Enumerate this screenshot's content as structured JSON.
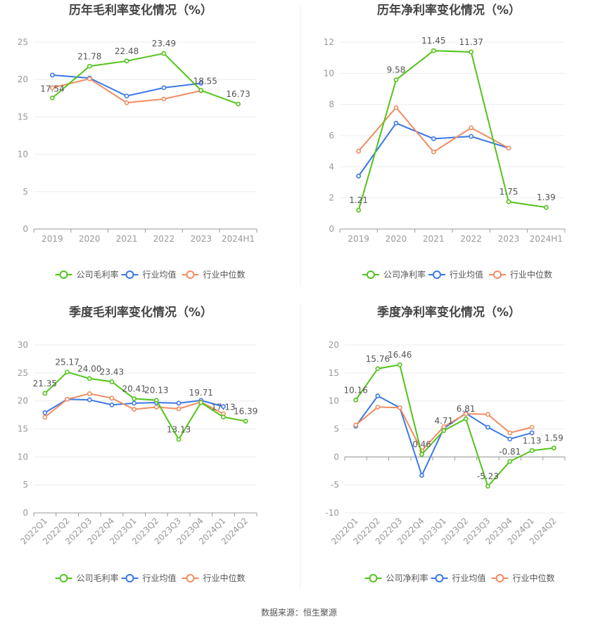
{
  "colors": {
    "company": "#52c41a",
    "industry_avg": "#3b78e7",
    "industry_median": "#f08c62"
  },
  "legend": {
    "gross": "公司毛利率",
    "net": "公司净利率",
    "avg": "行业均值",
    "median": "行业中位数"
  },
  "source": "数据来源：恒生聚源",
  "chart_data": [
    {
      "type": "line",
      "title": "历年毛利率变化情况（%）",
      "categories": [
        "2019",
        "2020",
        "2021",
        "2022",
        "2023",
        "2024H1"
      ],
      "ylim": [
        0,
        25
      ],
      "yticks": [
        0,
        5,
        10,
        15,
        20,
        25
      ],
      "series": [
        {
          "name": "公司毛利率",
          "values": [
            17.54,
            21.78,
            22.48,
            23.49,
            18.55,
            16.73
          ],
          "labels": [
            "17.54",
            "21.78",
            "22.48",
            "23.49",
            "18.55",
            "16.73"
          ]
        },
        {
          "name": "行业均值",
          "values": [
            20.6,
            20.2,
            17.8,
            18.9,
            19.5,
            null
          ]
        },
        {
          "name": "行业中位数",
          "values": [
            18.9,
            20.1,
            16.9,
            17.4,
            18.5,
            null
          ]
        }
      ]
    },
    {
      "type": "line",
      "title": "历年净利率变化情况（%）",
      "categories": [
        "2019",
        "2020",
        "2021",
        "2022",
        "2023",
        "2024H1"
      ],
      "ylim": [
        0,
        12
      ],
      "yticks": [
        0,
        2,
        4,
        6,
        8,
        10,
        12
      ],
      "series": [
        {
          "name": "公司净利率",
          "values": [
            1.21,
            9.58,
            11.45,
            11.37,
            1.75,
            1.39
          ],
          "labels": [
            "1.21",
            "9.58",
            "11.45",
            "11.37",
            "1.75",
            "1.39"
          ]
        },
        {
          "name": "行业均值",
          "values": [
            3.4,
            6.8,
            5.8,
            5.95,
            5.2,
            null
          ]
        },
        {
          "name": "行业中位数",
          "values": [
            5.0,
            7.8,
            4.95,
            6.5,
            5.2,
            null
          ]
        }
      ]
    },
    {
      "type": "line",
      "title": "季度毛利率变化情况（%）",
      "categories": [
        "2022Q1",
        "2022Q2",
        "2022Q3",
        "2022Q4",
        "2023Q1",
        "2023Q2",
        "2023Q3",
        "2023Q4",
        "2024Q1",
        "2024Q2"
      ],
      "ylim": [
        0,
        30
      ],
      "yticks": [
        0,
        5,
        10,
        15,
        20,
        25,
        30
      ],
      "series": [
        {
          "name": "公司毛利率",
          "values": [
            21.35,
            25.17,
            24.0,
            23.43,
            20.41,
            20.13,
            13.13,
            19.71,
            17.13,
            16.39
          ],
          "labels": [
            "21.35",
            "25.17",
            "24.00",
            "23.43",
            "20.41",
            "20.13",
            "13.13",
            "19.71",
            "17.13",
            "16.39"
          ]
        },
        {
          "name": "行业均值",
          "values": [
            17.9,
            20.3,
            20.2,
            19.3,
            19.6,
            19.7,
            19.6,
            20.1,
            19.0,
            null
          ]
        },
        {
          "name": "行业中位数",
          "values": [
            17.1,
            20.3,
            21.3,
            20.5,
            18.5,
            18.9,
            18.6,
            19.8,
            17.7,
            null
          ]
        }
      ]
    },
    {
      "type": "line",
      "title": "季度净利率变化情况（%）",
      "categories": [
        "2022Q1",
        "2022Q2",
        "2022Q3",
        "2022Q4",
        "2023Q1",
        "2023Q2",
        "2023Q3",
        "2023Q4",
        "2024Q1",
        "2024Q2"
      ],
      "ylim": [
        -10,
        20
      ],
      "yticks": [
        -10,
        -5,
        0,
        5,
        10,
        15,
        20
      ],
      "series": [
        {
          "name": "公司净利率",
          "values": [
            10.16,
            15.76,
            16.46,
            0.46,
            4.71,
            6.81,
            -5.23,
            -0.81,
            1.13,
            1.59
          ],
          "labels": [
            "10.16",
            "15.76",
            "16.46",
            "0.46",
            "4.71",
            "6.81",
            "-5.23",
            "-0.81",
            "1.13",
            "1.59"
          ]
        },
        {
          "name": "行业均值",
          "values": [
            5.5,
            10.9,
            8.8,
            -3.3,
            5.1,
            7.8,
            5.3,
            3.2,
            4.3,
            null
          ]
        },
        {
          "name": "行业中位数",
          "values": [
            5.7,
            8.9,
            8.8,
            1.1,
            5.4,
            7.7,
            7.6,
            4.3,
            5.3,
            null
          ]
        }
      ]
    }
  ]
}
